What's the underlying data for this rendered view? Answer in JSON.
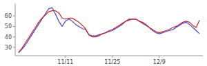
{
  "chart_data": {
    "type": "line",
    "categories": [
      null,
      null,
      null,
      null,
      null,
      null,
      null,
      null,
      null,
      null,
      null,
      null,
      null,
      null,
      "11/11",
      null,
      null,
      null,
      null,
      null,
      null,
      null,
      null,
      null,
      null,
      null,
      null,
      null,
      "11/25",
      null,
      null,
      null,
      null,
      null,
      null,
      null,
      null,
      null,
      null,
      null,
      null,
      null,
      "12/9",
      null,
      null,
      null,
      null,
      null,
      null,
      null,
      null,
      null,
      null,
      null,
      null
    ],
    "series": [
      {
        "color": "#4444cc",
        "values": [
          25,
          28,
          32,
          37,
          42,
          47,
          52,
          57,
          62,
          67,
          68,
          62,
          55,
          50,
          55,
          57,
          55,
          52,
          50,
          48,
          47,
          42,
          41,
          41,
          42,
          43,
          44,
          45,
          46,
          48,
          50,
          52,
          55,
          57,
          57,
          57,
          55,
          53,
          51,
          49,
          46,
          44,
          43,
          44,
          45,
          46,
          47,
          49,
          51,
          53,
          54,
          52,
          49,
          46,
          43
        ]
      },
      {
        "color": "#cc2222",
        "values": [
          25,
          29,
          34,
          39,
          44,
          49,
          54,
          58,
          61,
          64,
          65,
          65,
          63,
          58,
          57,
          58,
          58,
          56,
          54,
          51,
          48,
          42,
          40,
          40,
          41,
          43,
          44,
          46,
          47,
          49,
          51,
          53,
          55,
          56,
          57,
          57,
          55,
          54,
          52,
          49,
          47,
          45,
          44,
          45,
          46,
          47,
          49,
          50,
          52,
          54,
          55,
          54,
          51,
          49,
          56
        ]
      }
    ],
    "ylim": [
      22,
      72
    ],
    "yticks": [
      30,
      40,
      50,
      60
    ],
    "grid": false
  }
}
